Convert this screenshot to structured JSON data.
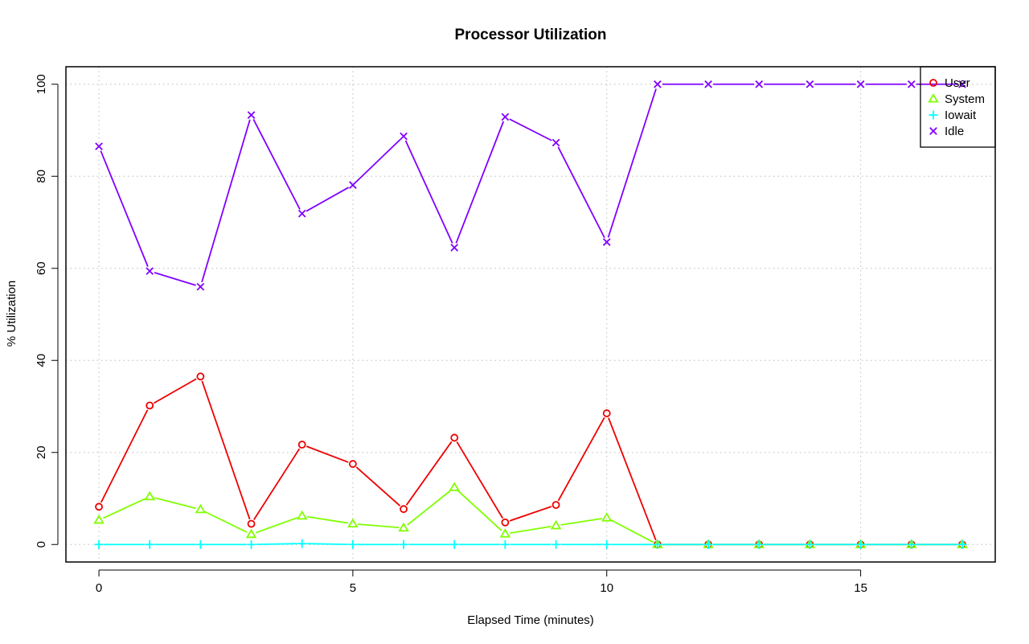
{
  "chart_data": {
    "type": "line",
    "title": "Processor Utilization",
    "xlabel": "Elapsed Time (minutes)",
    "ylabel": "% Utilization",
    "xlim": [
      -0.65,
      17.65
    ],
    "ylim": [
      -3.8,
      103.8
    ],
    "xticks": [
      0,
      5,
      10,
      15
    ],
    "yticks": [
      0,
      20,
      40,
      60,
      80,
      100
    ],
    "grid": true,
    "legend_position": "top-right",
    "x": [
      0,
      1,
      2,
      3,
      4,
      5,
      6,
      7,
      8,
      9,
      10,
      11,
      12,
      13,
      14,
      15,
      16,
      17
    ],
    "series": [
      {
        "name": "User",
        "color": "#ee0000",
        "marker": "circle",
        "values": [
          8.2,
          30.2,
          36.5,
          4.5,
          21.7,
          17.5,
          7.7,
          23.2,
          4.8,
          8.6,
          28.5,
          0,
          0,
          0,
          0,
          0,
          0,
          0
        ]
      },
      {
        "name": "System",
        "color": "#80ff00",
        "marker": "triangle",
        "values": [
          5.3,
          10.4,
          7.6,
          2.2,
          6.2,
          4.5,
          3.6,
          12.4,
          2.3,
          4.1,
          5.8,
          0,
          0,
          0,
          0,
          0,
          0,
          0
        ]
      },
      {
        "name": "Iowait",
        "color": "#00ffff",
        "marker": "plus",
        "values": [
          0,
          0,
          0,
          0,
          0.2,
          0,
          0,
          0,
          0,
          0,
          0,
          0,
          0,
          0,
          0,
          0,
          0,
          0
        ]
      },
      {
        "name": "Idle",
        "color": "#8000ff",
        "marker": "cross",
        "values": [
          86.5,
          59.4,
          56,
          93.3,
          71.9,
          78.1,
          88.7,
          64.5,
          92.9,
          87.3,
          65.7,
          100,
          100,
          100,
          100,
          100,
          100,
          100
        ]
      }
    ]
  }
}
